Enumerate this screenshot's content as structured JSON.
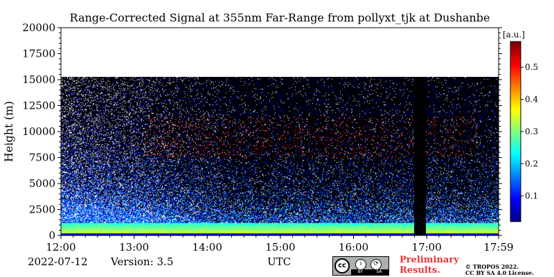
{
  "chart_data": {
    "type": "heatmap",
    "title": "Range-Corrected Signal at 355nm Far-Range from pollyxt_tjk at Dushanbe",
    "xlabel": "",
    "ylabel": "Height (m)",
    "x_tick_labels": [
      "12:00",
      "13:00",
      "14:00",
      "15:00",
      "16:00",
      "17:00",
      "17:59"
    ],
    "x_range_hours": [
      12.0,
      17.983
    ],
    "y_ticks": [
      0,
      2500,
      5000,
      7500,
      10000,
      12500,
      15000,
      17500,
      20000
    ],
    "y_tick_labels": [
      "0",
      "2500",
      "5000",
      "7500",
      "10000",
      "12500",
      "15000",
      "17500",
      "20000"
    ],
    "ylim": [
      0,
      20000
    ],
    "data_top_m": 15300,
    "gap_hours": [
      16.82,
      16.98
    ],
    "colorbar": {
      "label": "[a.u.]",
      "range": [
        0.02,
        0.58
      ],
      "ticks": [
        0.1,
        0.2,
        0.3,
        0.4,
        0.5
      ],
      "tick_labels": [
        "0.1",
        "0.2",
        "0.3",
        "0.4",
        "0.5"
      ],
      "colormap": "jet"
    },
    "colors": {
      "background": "#000000",
      "noise_white": "#ffffff"
    }
  },
  "footer": {
    "date": "2022-07-12",
    "version": "Version: 3.5",
    "timezone": "UTC",
    "license_badge": [
      "BY",
      "SA"
    ],
    "preliminary": "Preliminary\nResults.",
    "copyright": "© TROPOS 2022.\nCC BY SA 4.0 License."
  }
}
